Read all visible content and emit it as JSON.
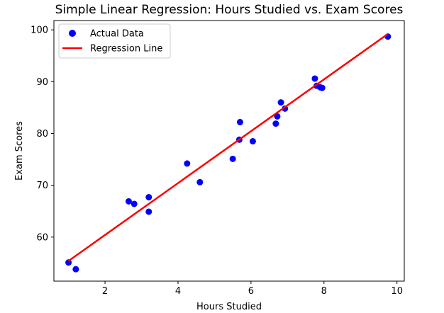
{
  "chart_data": {
    "type": "scatter",
    "title": "Simple Linear Regression: Hours Studied vs. Exam Scores",
    "xlabel": "Hours Studied",
    "ylabel": "Exam Scores",
    "xlim": [
      0.6,
      10.2
    ],
    "ylim": [
      51.5,
      101.8
    ],
    "xticks": [
      2,
      4,
      6,
      8,
      10
    ],
    "yticks": [
      60,
      70,
      80,
      90,
      100
    ],
    "grid": false,
    "legend_position": "top-left",
    "series": [
      {
        "name": "Actual Data",
        "kind": "scatter",
        "color": "#0000ff",
        "points": [
          {
            "x": 1.0,
            "y": 55.1
          },
          {
            "x": 1.2,
            "y": 53.8
          },
          {
            "x": 2.65,
            "y": 66.9
          },
          {
            "x": 2.8,
            "y": 66.4
          },
          {
            "x": 3.2,
            "y": 67.7
          },
          {
            "x": 3.2,
            "y": 64.9
          },
          {
            "x": 4.25,
            "y": 74.2
          },
          {
            "x": 4.6,
            "y": 70.6
          },
          {
            "x": 5.5,
            "y": 75.1
          },
          {
            "x": 5.68,
            "y": 78.8
          },
          {
            "x": 5.7,
            "y": 82.2
          },
          {
            "x": 6.05,
            "y": 78.5
          },
          {
            "x": 6.68,
            "y": 81.9
          },
          {
            "x": 6.72,
            "y": 83.3
          },
          {
            "x": 6.82,
            "y": 86.0
          },
          {
            "x": 6.93,
            "y": 84.8
          },
          {
            "x": 7.75,
            "y": 90.6
          },
          {
            "x": 7.8,
            "y": 89.2
          },
          {
            "x": 7.9,
            "y": 88.9
          },
          {
            "x": 7.95,
            "y": 88.8
          },
          {
            "x": 9.75,
            "y": 98.7
          }
        ]
      },
      {
        "name": "Regression Line",
        "kind": "line",
        "color": "#ff0000",
        "points": [
          {
            "x": 1.0,
            "y": 55.4
          },
          {
            "x": 9.75,
            "y": 99.2
          }
        ]
      }
    ]
  }
}
